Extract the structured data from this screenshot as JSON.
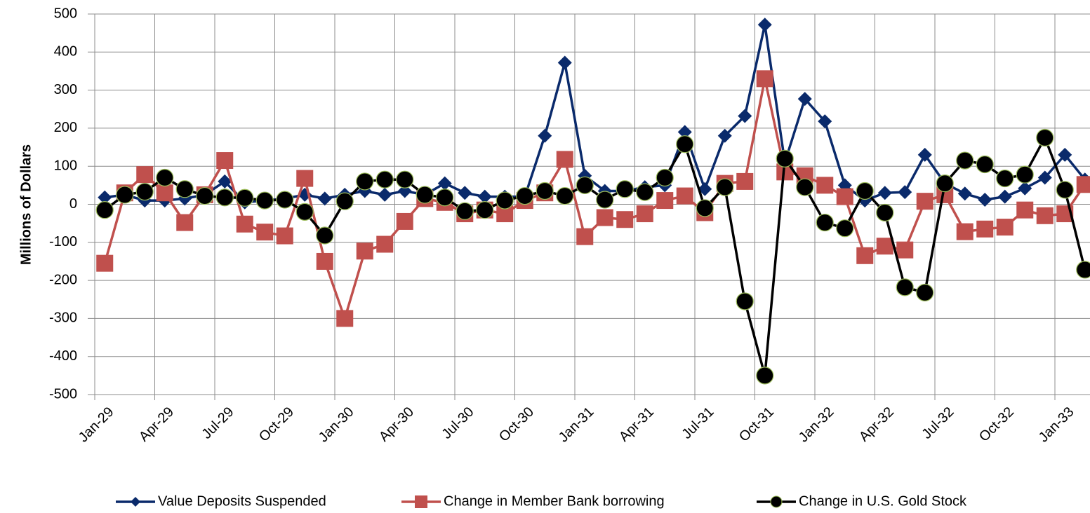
{
  "chart_data": {
    "type": "line",
    "y_label": "Millions of Dollars",
    "categories": [
      "Jan-29",
      null,
      null,
      "Apr-29",
      null,
      null,
      "Jul-29",
      null,
      null,
      "Oct-29",
      null,
      null,
      "Jan-30",
      null,
      null,
      "Apr-30",
      null,
      null,
      "Jul-30",
      null,
      null,
      "Oct-30",
      null,
      null,
      "Jan-31",
      null,
      null,
      "Apr-31",
      null,
      null,
      "Jul-31",
      null,
      null,
      "Oct-31",
      null,
      null,
      "Jan-32",
      null,
      null,
      "Apr-32",
      null,
      null,
      "Jul-32",
      null,
      null,
      "Oct-32",
      null,
      null,
      "Jan-33",
      null
    ],
    "series": [
      {
        "name": "Value Deposits Suspended",
        "color": "#0a2a6b",
        "marker": "diamond",
        "values": [
          18,
          25,
          10,
          10,
          15,
          25,
          60,
          5,
          10,
          15,
          25,
          15,
          25,
          35,
          25,
          35,
          25,
          55,
          30,
          20,
          20,
          20,
          180,
          372,
          75,
          35,
          35,
          45,
          50,
          190,
          40,
          180,
          232,
          472,
          110,
          277,
          218,
          50,
          10,
          30,
          32,
          130,
          55,
          28,
          12,
          20,
          42,
          70,
          130,
          65
        ]
      },
      {
        "name": "Change in Member Bank borrowing",
        "color": "#c0504d",
        "marker": "square",
        "values": [
          -155,
          30,
          78,
          30,
          -48,
          25,
          115,
          -52,
          -73,
          -83,
          68,
          -150,
          -300,
          -123,
          -105,
          -45,
          15,
          5,
          -25,
          -15,
          -25,
          10,
          30,
          118,
          -85,
          -35,
          -40,
          -25,
          10,
          22,
          -22,
          55,
          60,
          330,
          85,
          75,
          50,
          20,
          -135,
          -110,
          -120,
          8,
          25,
          -72,
          -65,
          -60,
          -15,
          -30,
          -25,
          52
        ]
      },
      {
        "name": "Change in U.S. Gold Stock",
        "color": "#000000",
        "marker": "circle",
        "values": [
          -15,
          25,
          33,
          70,
          40,
          22,
          18,
          17,
          10,
          12,
          -20,
          -82,
          8,
          60,
          65,
          65,
          25,
          18,
          -18,
          -15,
          10,
          22,
          35,
          22,
          50,
          12,
          40,
          32,
          70,
          158,
          -10,
          45,
          -255,
          -450,
          120,
          45,
          -48,
          -63,
          35,
          -22,
          -218,
          -232,
          55,
          115,
          105,
          68,
          78,
          175,
          38,
          -172
        ]
      }
    ],
    "ylim": [
      -500,
      500
    ],
    "yticks": [
      -500,
      -400,
      -300,
      -200,
      -100,
      0,
      100,
      200,
      300,
      400,
      500
    ],
    "grid": true,
    "legend": "bottom"
  }
}
